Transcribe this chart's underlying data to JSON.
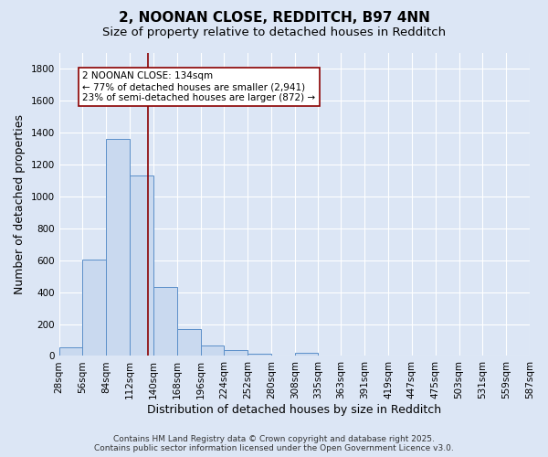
{
  "title": "2, NOONAN CLOSE, REDDITCH, B97 4NN",
  "subtitle": "Size of property relative to detached houses in Redditch",
  "xlabel": "Distribution of detached houses by size in Redditch",
  "ylabel": "Number of detached properties",
  "bar_values": [
    55,
    605,
    1360,
    1130,
    430,
    170,
    65,
    35,
    15,
    0,
    20,
    0,
    0,
    0,
    0,
    0,
    0,
    0,
    0,
    0
  ],
  "bar_edges": [
    28,
    56,
    84,
    112,
    140,
    168,
    196,
    224,
    252,
    280,
    308,
    335,
    363,
    391,
    419,
    447,
    475,
    503,
    531,
    559,
    587
  ],
  "bar_color": "#c9d9ef",
  "bar_edge_color": "#5b8fc9",
  "bg_color": "#dce6f5",
  "grid_color": "#ffffff",
  "property_line_x": 134,
  "property_line_color": "#8b0000",
  "annotation_text": "2 NOONAN CLOSE: 134sqm\n← 77% of detached houses are smaller (2,941)\n23% of semi-detached houses are larger (872) →",
  "annotation_box_color": "#ffffff",
  "annotation_border_color": "#8b0000",
  "ylim": [
    0,
    1900
  ],
  "yticks": [
    0,
    200,
    400,
    600,
    800,
    1000,
    1200,
    1400,
    1600,
    1800
  ],
  "xtick_labels": [
    "28sqm",
    "56sqm",
    "84sqm",
    "112sqm",
    "140sqm",
    "168sqm",
    "196sqm",
    "224sqm",
    "252sqm",
    "280sqm",
    "308sqm",
    "335sqm",
    "363sqm",
    "391sqm",
    "419sqm",
    "447sqm",
    "475sqm",
    "503sqm",
    "531sqm",
    "559sqm",
    "587sqm"
  ],
  "footer_text": "Contains HM Land Registry data © Crown copyright and database right 2025.\nContains public sector information licensed under the Open Government Licence v3.0.",
  "title_fontsize": 11,
  "subtitle_fontsize": 9.5,
  "tick_fontsize": 7.5,
  "ylabel_fontsize": 9,
  "xlabel_fontsize": 9,
  "annotation_fontsize": 7.5,
  "footer_fontsize": 6.5
}
